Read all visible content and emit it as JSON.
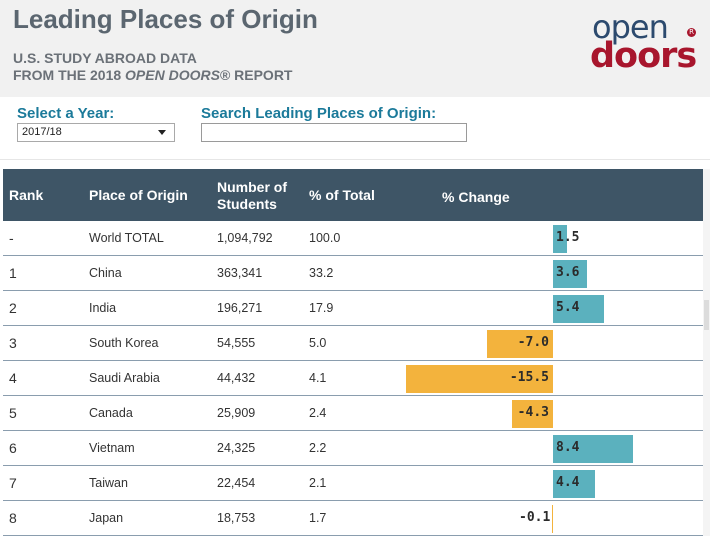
{
  "header": {
    "title": "Leading Places of Origin",
    "subtitle_line1": "U.S. STUDY ABROAD DATA",
    "subtitle_line2_prefix": "FROM THE 2018 ",
    "subtitle_line2_italic": "OPEN DOORS",
    "subtitle_line2_suffix": "® REPORT",
    "logo_top": "open",
    "logo_bottom": "doors",
    "logo_reg": "R"
  },
  "controls": {
    "year_label": "Select a Year:",
    "year_value": "2017/18",
    "search_label": "Search Leading Places of Origin:",
    "search_value": "",
    "search_placeholder": ""
  },
  "table": {
    "columns": {
      "rank": "Rank",
      "place": "Place of Origin",
      "students_l1": "Number of",
      "students_l2": "Students",
      "pct_total": "% of Total",
      "pct_change": "% Change"
    },
    "rows": [
      {
        "rank": "-",
        "place": "World TOTAL",
        "students": "1,094,792",
        "pct_total": "100.0",
        "pct_change": 1.5,
        "pct_change_label": "1.5"
      },
      {
        "rank": "1",
        "place": "China",
        "students": "363,341",
        "pct_total": "33.2",
        "pct_change": 3.6,
        "pct_change_label": "3.6"
      },
      {
        "rank": "2",
        "place": "India",
        "students": "196,271",
        "pct_total": "17.9",
        "pct_change": 5.4,
        "pct_change_label": "5.4"
      },
      {
        "rank": "3",
        "place": "South Korea",
        "students": "54,555",
        "pct_total": "5.0",
        "pct_change": -7.0,
        "pct_change_label": "-7.0"
      },
      {
        "rank": "4",
        "place": "Saudi Arabia",
        "students": "44,432",
        "pct_total": "4.1",
        "pct_change": -15.5,
        "pct_change_label": "-15.5"
      },
      {
        "rank": "5",
        "place": "Canada",
        "students": "25,909",
        "pct_total": "2.4",
        "pct_change": -4.3,
        "pct_change_label": "-4.3"
      },
      {
        "rank": "6",
        "place": "Vietnam",
        "students": "24,325",
        "pct_total": "2.2",
        "pct_change": 8.4,
        "pct_change_label": "8.4"
      },
      {
        "rank": "7",
        "place": "Taiwan",
        "students": "22,454",
        "pct_total": "2.1",
        "pct_change": 4.4,
        "pct_change_label": "4.4"
      },
      {
        "rank": "8",
        "place": "Japan",
        "students": "18,753",
        "pct_total": "1.7",
        "pct_change": -0.1,
        "pct_change_label": "-0.1"
      }
    ]
  },
  "colors": {
    "positive_bar": "#5bb1be",
    "negative_bar": "#f3b33d",
    "header_bg": "#3e5566",
    "label_blue": "#1b7a9a",
    "logo_blue": "#2c4a6e",
    "logo_red": "#a8162d"
  }
}
